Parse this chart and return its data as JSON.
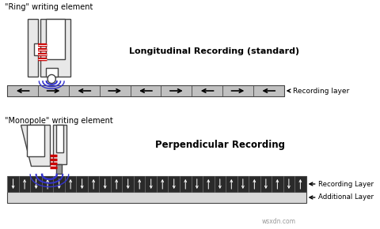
{
  "bg_color": "#ffffff",
  "title_top": "\"Ring\" writing element",
  "title_bottom": "\"Monopole\" writing element",
  "label_longitudinal": "Longitudinal Recording (standard)",
  "label_perpendicular": "Perpendicular Recording",
  "label_recording_layer_top": "Recording layer",
  "label_recording_layer_bot": "Recording Layer",
  "label_additional_layer": "Additional Layer",
  "watermark": "wsxdn.com",
  "red_color": "#cc0000",
  "blue_color": "#3333cc",
  "dark_gray": "#444444",
  "black": "#000000",
  "light_gray": "#e8e8e8",
  "strip_gray": "#c0c0c0",
  "add_layer_gray": "#d8d8d8"
}
